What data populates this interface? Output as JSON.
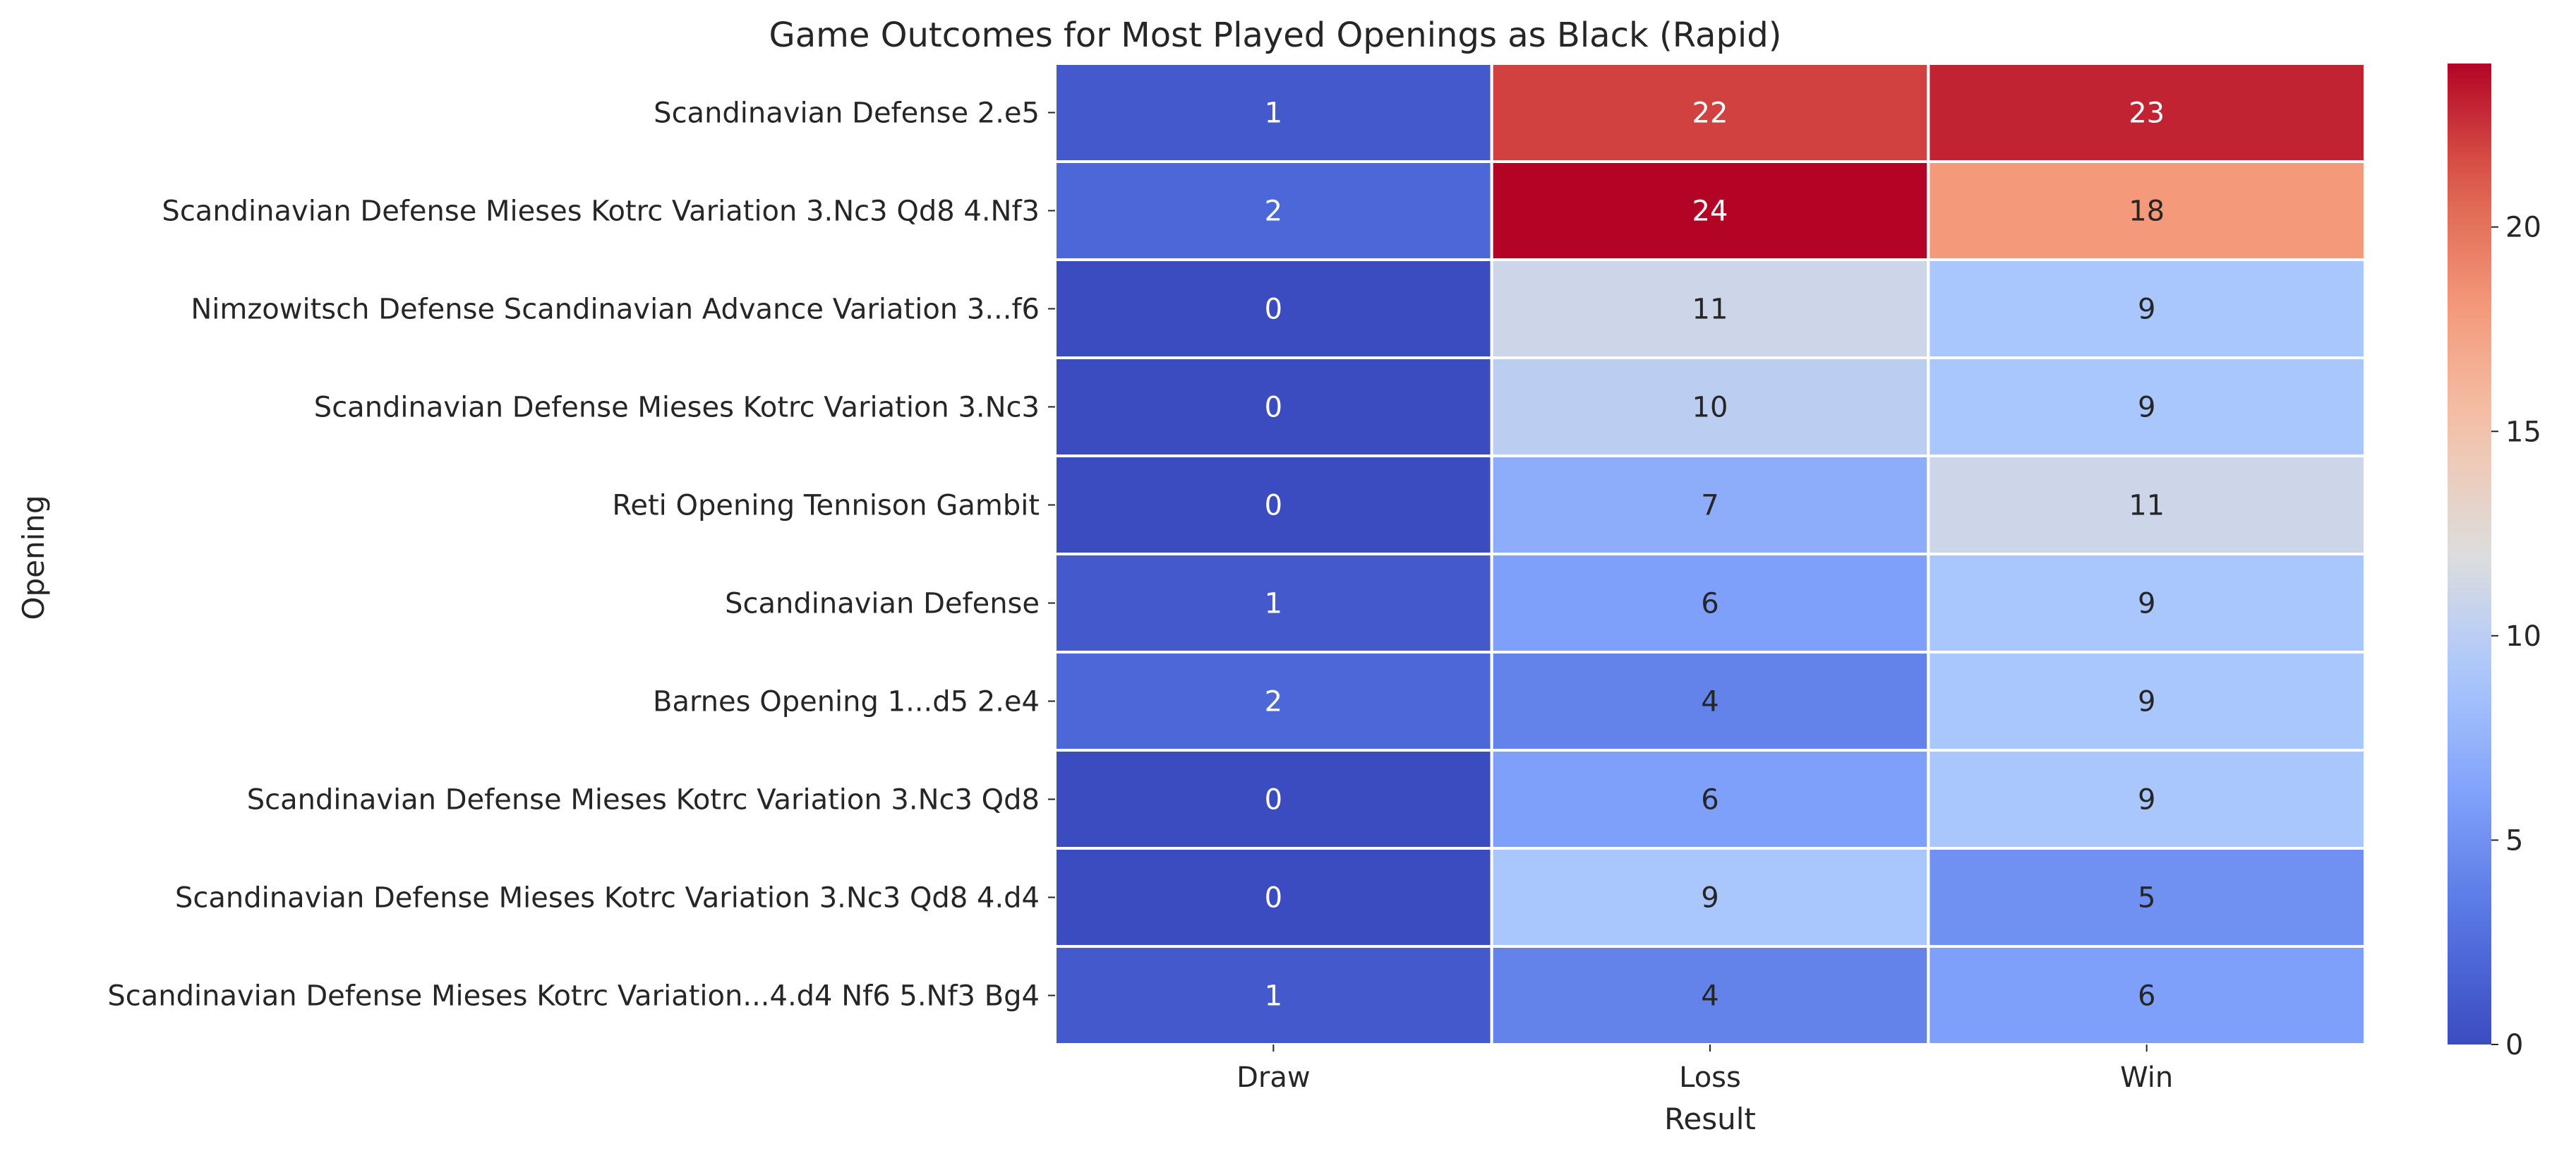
{
  "chart_data": {
    "type": "heatmap",
    "title": "Game Outcomes for Most Played Openings as Black (Rapid)",
    "xlabel": "Result",
    "ylabel": "Opening",
    "columns": [
      "Draw",
      "Loss",
      "Win"
    ],
    "rows": [
      "Scandinavian Defense 2.e5",
      "Scandinavian Defense Mieses Kotrc Variation 3.Nc3 Qd8 4.Nf3",
      "Nimzowitsch Defense Scandinavian Advance Variation 3...f6",
      "Scandinavian Defense Mieses Kotrc Variation 3.Nc3",
      "Reti Opening Tennison Gambit",
      "Scandinavian Defense",
      "Barnes Opening 1...d5 2.e4",
      "Scandinavian Defense Mieses Kotrc Variation 3.Nc3 Qd8",
      "Scandinavian Defense Mieses Kotrc Variation 3.Nc3 Qd8 4.d4",
      "Scandinavian Defense Mieses Kotrc Variation...4.d4 Nf6 5.Nf3 Bg4"
    ],
    "values": [
      [
        1,
        22,
        23
      ],
      [
        2,
        24,
        18
      ],
      [
        0,
        11,
        9
      ],
      [
        0,
        10,
        9
      ],
      [
        0,
        7,
        11
      ],
      [
        1,
        6,
        9
      ],
      [
        2,
        4,
        9
      ],
      [
        0,
        6,
        9
      ],
      [
        0,
        9,
        5
      ],
      [
        1,
        4,
        6
      ]
    ],
    "colormap": "coolwarm",
    "vmin": 0,
    "vmax": 24,
    "colorbar_ticks": [
      0,
      5,
      10,
      15,
      20
    ]
  }
}
